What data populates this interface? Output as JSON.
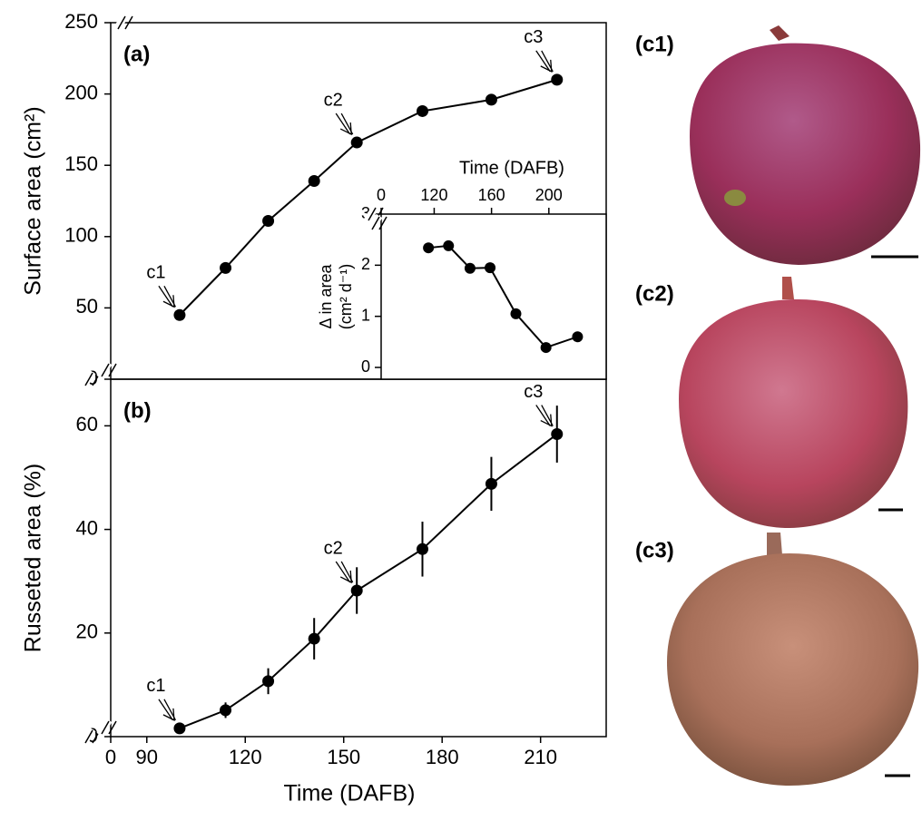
{
  "chart_data": [
    {
      "type": "line",
      "panel_label": "(a)",
      "ylabel": "Surface area (cm²)",
      "x": [
        100,
        114,
        127,
        141,
        154,
        174,
        195,
        215
      ],
      "series": [
        {
          "color": "#000000",
          "values": [
            45,
            78,
            111,
            139,
            166,
            188,
            196,
            210
          ]
        }
      ],
      "xlim": [
        0,
        230
      ],
      "xbreak": [
        0,
        79
      ],
      "ylim": [
        0,
        250
      ],
      "yticks": [
        0,
        50,
        100,
        150,
        200,
        250
      ],
      "annotations": [
        {
          "text": "c1",
          "x": 100
        },
        {
          "text": "c2",
          "x": 154
        },
        {
          "text": "c3",
          "x": 215
        }
      ]
    },
    {
      "type": "line",
      "panel_label": "(b)",
      "ylabel": "Russeted area (%)",
      "xlabel": "Time (DAFB)",
      "x": [
        100,
        114,
        127,
        141,
        154,
        174,
        195,
        215
      ],
      "series": [
        {
          "color": "#000000",
          "values": [
            1.6,
            5.1,
            10.7,
            18.9,
            28.2,
            36.2,
            48.8,
            58.4
          ],
          "errors": [
            0.8,
            1.5,
            2.5,
            4,
            4.5,
            5.3,
            5.2,
            5.5
          ]
        }
      ],
      "xlim": [
        0,
        230
      ],
      "xbreak": [
        0,
        79
      ],
      "xticks": [
        0,
        90,
        120,
        150,
        180,
        210
      ],
      "ylim": [
        0,
        69
      ],
      "yticks": [
        0,
        20,
        40,
        60
      ],
      "annotations": [
        {
          "text": "c1",
          "x": 100
        },
        {
          "text": "c2",
          "x": 154
        },
        {
          "text": "c3",
          "x": 215
        }
      ]
    },
    {
      "type": "line",
      "inset": true,
      "ylabel": [
        "Δ in area",
        "(cm² d⁻¹)"
      ],
      "xlabel": "Time (DAFB)",
      "x": [
        116,
        130,
        145,
        159,
        177,
        198,
        220
      ],
      "series": [
        {
          "color": "#000000",
          "values": [
            2.34,
            2.38,
            1.94,
            1.95,
            1.05,
            0.39,
            0.6
          ]
        }
      ],
      "xlim": [
        0,
        240
      ],
      "xbreak": [
        0,
        83
      ],
      "xticks": [
        0,
        120,
        160,
        200
      ],
      "ylim": [
        -0.23,
        3
      ],
      "yticks": [
        0,
        1,
        2,
        3
      ]
    }
  ],
  "photos": [
    {
      "label": "(c1)"
    },
    {
      "label": "(c2)"
    },
    {
      "label": "(c3)"
    }
  ]
}
